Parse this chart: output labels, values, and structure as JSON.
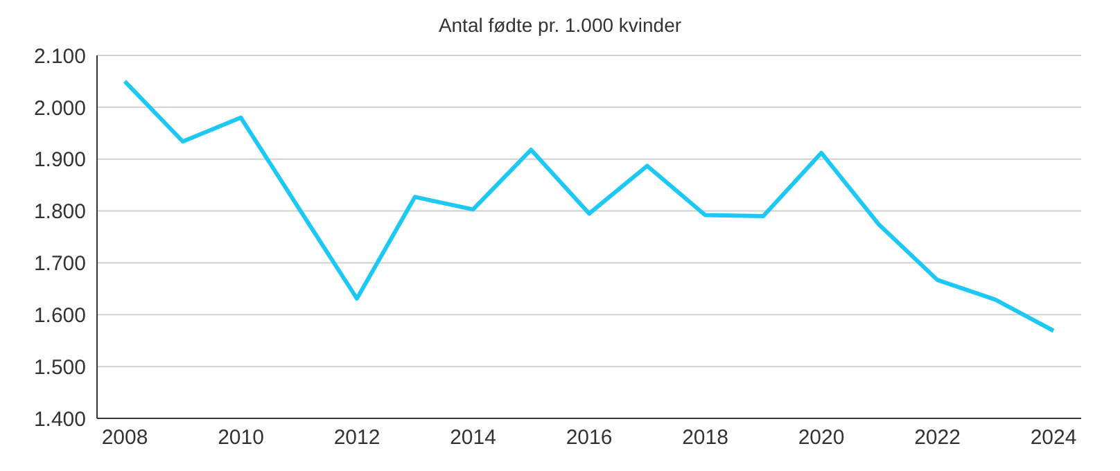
{
  "chart_data": {
    "type": "line",
    "title": "Antal fødte pr. 1.000 kvinder",
    "categories": [
      "2008",
      null,
      "2010",
      null,
      "2012",
      null,
      "2014",
      null,
      "2016",
      null,
      "2018",
      null,
      "2020",
      null,
      "2022",
      null,
      "2024"
    ],
    "series": [
      {
        "color": "#1ec8f5",
        "values": [
          2050,
          1934,
          1980,
          1805,
          1631,
          1827,
          1803,
          1918,
          1795,
          1887,
          1792,
          1790,
          1912,
          1773,
          1667,
          1629,
          1569
        ]
      }
    ],
    "ylim": [
      1400,
      2100
    ],
    "yticks": [
      {
        "value": 1400,
        "label": "1.400"
      },
      {
        "value": 1500,
        "label": "1.500"
      },
      {
        "value": 1600,
        "label": "1.600"
      },
      {
        "value": 1700,
        "label": "1.700"
      },
      {
        "value": 1800,
        "label": "1.800"
      },
      {
        "value": 1900,
        "label": "1.900"
      },
      {
        "value": 2000,
        "label": "2.000"
      },
      {
        "value": 2100,
        "label": "2.100"
      }
    ],
    "grid": "y",
    "marker": "none",
    "line_style": "solid",
    "legend": false
  }
}
